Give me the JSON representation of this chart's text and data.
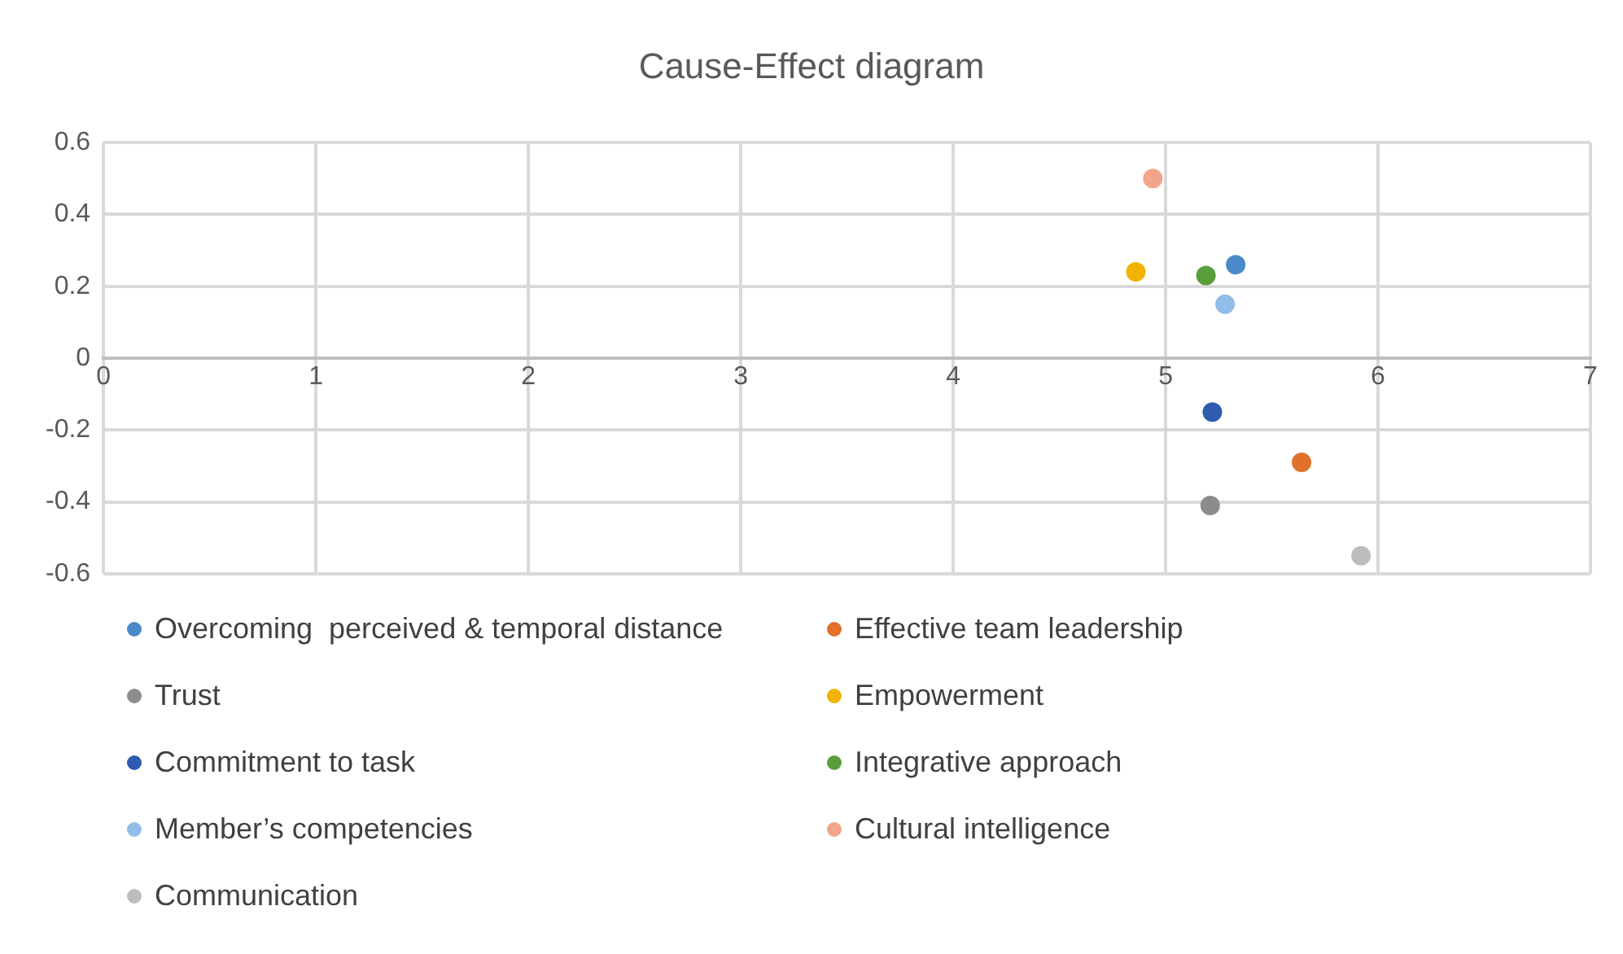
{
  "chart_data": {
    "type": "scatter",
    "title": "Cause-Effect diagram",
    "xlim": [
      0,
      7
    ],
    "xticks": [
      0,
      1,
      2,
      3,
      4,
      5,
      6,
      7
    ],
    "ylim": [
      -0.6,
      0.6
    ],
    "yticks": [
      -0.6,
      -0.4,
      -0.2,
      0,
      0.2,
      0.4,
      0.6
    ],
    "grid": true,
    "legend": "bottom",
    "marker": "circle",
    "series": [
      {
        "name": "Overcoming  perceived & temporal distance",
        "color": "#4a8ac8",
        "x": [
          5.33
        ],
        "values": [
          0.26
        ]
      },
      {
        "name": "Effective team leadership",
        "color": "#e0702a",
        "x": [
          5.64
        ],
        "values": [
          -0.29
        ]
      },
      {
        "name": "Trust",
        "color": "#8c8c8c",
        "x": [
          5.21
        ],
        "values": [
          -0.41
        ]
      },
      {
        "name": "Empowerment",
        "color": "#f0b400",
        "x": [
          4.86
        ],
        "values": [
          0.24
        ]
      },
      {
        "name": "Commitment to task",
        "color": "#2e5cb0",
        "x": [
          5.22
        ],
        "values": [
          -0.15
        ]
      },
      {
        "name": "Integrative approach",
        "color": "#5a9e3c",
        "x": [
          5.19
        ],
        "values": [
          0.23
        ]
      },
      {
        "name": "Member’s competencies",
        "color": "#92bde8",
        "x": [
          5.28
        ],
        "values": [
          0.15
        ]
      },
      {
        "name": "Cultural intelligence",
        "color": "#f2a58a",
        "x": [
          4.94
        ],
        "values": [
          0.5
        ]
      },
      {
        "name": "Communication",
        "color": "#bdbdbd",
        "x": [
          5.92
        ],
        "values": [
          -0.55
        ]
      }
    ]
  }
}
